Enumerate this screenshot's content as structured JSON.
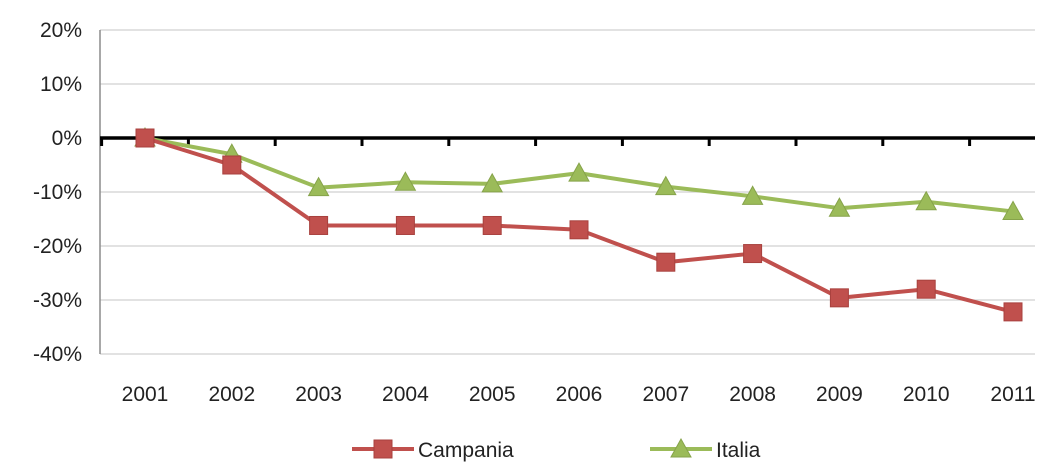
{
  "chart_data": {
    "type": "line",
    "categories": [
      "2001",
      "2002",
      "2003",
      "2004",
      "2005",
      "2006",
      "2007",
      "2008",
      "2009",
      "2010",
      "2011"
    ],
    "series": [
      {
        "name": "Campania",
        "values": [
          0,
          -5,
          -16.2,
          -16.2,
          -16.2,
          -17,
          -23,
          -21.4,
          -29.6,
          -28,
          -32.2
        ],
        "color": "#c0504d",
        "marker": "square"
      },
      {
        "name": "Italia",
        "values": [
          0,
          -3,
          -9.2,
          -8.2,
          -8.5,
          -6.5,
          -9,
          -10.8,
          -13,
          -11.8,
          -13.6
        ],
        "color": "#9bbb59",
        "marker": "triangle"
      }
    ],
    "ylim": [
      -40,
      20
    ],
    "yticks": [
      20,
      10,
      0,
      -10,
      -20,
      -30,
      -40
    ],
    "ytick_labels": [
      "20%",
      "10%",
      "0%",
      "-10%",
      "-20%",
      "-30%",
      "-40%"
    ],
    "grid": true,
    "zero_line": true,
    "legend": "bottom",
    "title": "",
    "xlabel": "",
    "ylabel": ""
  }
}
